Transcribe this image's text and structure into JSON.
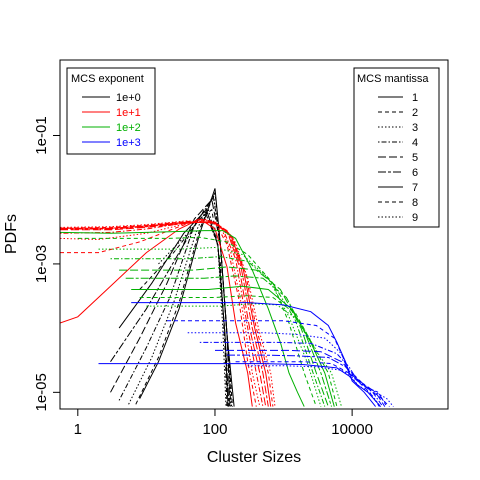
{
  "chart_data": {
    "type": "line",
    "xlabel": "Cluster Sizes",
    "ylabel": "PDFs",
    "x_scale": "log",
    "y_scale": "log",
    "xlim": [
      0.55,
      250000
    ],
    "ylim": [
      5.5e-06,
      1.5
    ],
    "grid": false,
    "x_ticks": [
      {
        "value": 1,
        "label": "1"
      },
      {
        "value": 100,
        "label": "100"
      },
      {
        "value": 10000,
        "label": "10000"
      }
    ],
    "y_ticks": [
      {
        "value": 0.1,
        "label": "1e-01"
      },
      {
        "value": 0.001,
        "label": "1e-03"
      },
      {
        "value": 1e-05,
        "label": "1e-05"
      }
    ],
    "legend_exponent": {
      "title": "MCS exponent",
      "placement": "top-left",
      "items": [
        {
          "label": "1e+0",
          "color": "#000000"
        },
        {
          "label": "1e+1",
          "color": "#ff0000"
        },
        {
          "label": "1e+2",
          "color": "#00b000"
        },
        {
          "label": "1e+3",
          "color": "#0000ff"
        }
      ]
    },
    "legend_mantissa": {
      "title": "MCS mantissa",
      "placement": "top-right",
      "items": [
        {
          "label": "1",
          "dash": "none"
        },
        {
          "label": "2",
          "dash": "4,3"
        },
        {
          "label": "3",
          "dash": "1.5,2"
        },
        {
          "label": "4",
          "dash": "1.5,2,5,2"
        },
        {
          "label": "5",
          "dash": "8,3"
        },
        {
          "label": "6",
          "dash": "8,2,3,2"
        },
        {
          "label": "7",
          "dash": "none"
        },
        {
          "label": "8",
          "dash": "4,3"
        },
        {
          "label": "9",
          "dash": "1.5,2"
        }
      ]
    },
    "series": [
      {
        "exponent": "1e+0",
        "mantissa": "1",
        "x": [
          8,
          15,
          30,
          60,
          100,
          120,
          150,
          190
        ],
        "y": [
          8e-06,
          3e-05,
          0.0002,
          0.003,
          0.015,
          0.002,
          8e-05,
          6e-06
        ]
      },
      {
        "exponent": "1e+0",
        "mantissa": "2",
        "x": [
          7,
          15,
          30,
          60,
          100,
          120,
          150,
          180
        ],
        "y": [
          6.5e-06,
          3.5e-05,
          0.00025,
          0.0035,
          0.013,
          0.002,
          8e-05,
          6e-06
        ]
      },
      {
        "exponent": "1e+0",
        "mantissa": "3",
        "x": [
          5.5,
          12,
          25,
          55,
          95,
          120,
          150,
          175
        ],
        "y": [
          6.5e-06,
          3.5e-05,
          0.00025,
          0.0035,
          0.012,
          0.002,
          8e-05,
          6e-06
        ]
      },
      {
        "exponent": "1e+0",
        "mantissa": "4",
        "x": [
          4,
          10,
          22,
          50,
          95,
          120,
          150,
          170
        ],
        "y": [
          7.5e-06,
          5e-05,
          0.0003,
          0.004,
          0.011,
          0.002,
          8e-05,
          6e-06
        ]
      },
      {
        "exponent": "1e+0",
        "mantissa": "5",
        "x": [
          3,
          8,
          20,
          50,
          90,
          120,
          150,
          165
        ],
        "y": [
          1e-05,
          7e-05,
          0.0005,
          0.005,
          0.01,
          0.002,
          8e-05,
          6e-06
        ]
      },
      {
        "exponent": "1e+0",
        "mantissa": "6",
        "x": [
          3,
          10,
          30,
          70,
          110,
          140,
          160
        ],
        "y": [
          3e-05,
          0.0002,
          0.0015,
          0.007,
          0.002,
          8e-05,
          6e-06
        ]
      },
      {
        "exponent": "1e+0",
        "mantissa": "7",
        "x": [
          4,
          12,
          35,
          75,
          110,
          140,
          155
        ],
        "y": [
          0.0001,
          0.0005,
          0.003,
          0.007,
          0.002,
          8e-05,
          6e-06
        ]
      },
      {
        "exponent": "1e+0",
        "mantissa": "8",
        "x": [
          8,
          25,
          60,
          90,
          120,
          140,
          150
        ],
        "y": [
          0.0004,
          0.0015,
          0.005,
          0.007,
          0.001,
          5e-05,
          6e-06
        ]
      },
      {
        "exponent": "1e+0",
        "mantissa": "9",
        "x": [
          15,
          40,
          80,
          110,
          130,
          145
        ],
        "y": [
          0.001,
          0.003,
          0.007,
          0.002,
          0.0001,
          6e-06
        ]
      },
      {
        "exponent": "1e+1",
        "mantissa": "1",
        "x": [
          0.55,
          1,
          3,
          10,
          30,
          60,
          100,
          150,
          200,
          300,
          350
        ],
        "y": [
          0.00012,
          0.00015,
          0.00045,
          0.0015,
          0.0035,
          0.005,
          0.0035,
          0.0009,
          0.00012,
          2e-05,
          6e-06
        ]
      },
      {
        "exponent": "1e+1",
        "mantissa": "2",
        "x": [
          0.55,
          2,
          8,
          30,
          60,
          100,
          150,
          220,
          300,
          400
        ],
        "y": [
          0.0015,
          0.0015,
          0.0022,
          0.0038,
          0.005,
          0.0045,
          0.002,
          0.0003,
          3e-05,
          6e-06
        ]
      },
      {
        "exponent": "1e+1",
        "mantissa": "3",
        "x": [
          0.55,
          2,
          10,
          30,
          70,
          120,
          170,
          250,
          350,
          450
        ],
        "y": [
          0.0025,
          0.0024,
          0.003,
          0.004,
          0.005,
          0.004,
          0.0015,
          0.0002,
          2e-05,
          6e-06
        ]
      },
      {
        "exponent": "1e+1",
        "mantissa": "4",
        "x": [
          0.55,
          3,
          10,
          30,
          80,
          130,
          200,
          300,
          400,
          500
        ],
        "y": [
          0.003,
          0.0031,
          0.0035,
          0.0042,
          0.0048,
          0.0035,
          0.0012,
          0.0001,
          2e-05,
          6e-06
        ]
      },
      {
        "exponent": "1e+1",
        "mantissa": "5",
        "x": [
          0.55,
          3,
          10,
          40,
          90,
          150,
          220,
          320,
          450,
          550
        ],
        "y": [
          0.0034,
          0.0034,
          0.0037,
          0.0043,
          0.0046,
          0.0033,
          0.001,
          0.0001,
          2e-05,
          6e-06
        ]
      },
      {
        "exponent": "1e+1",
        "mantissa": "6",
        "x": [
          0.55,
          3,
          10,
          40,
          100,
          160,
          240,
          350,
          500,
          600
        ],
        "y": [
          0.0035,
          0.0035,
          0.0038,
          0.0044,
          0.0045,
          0.003,
          0.0009,
          0.0001,
          2e-05,
          6e-06
        ]
      },
      {
        "exponent": "1e+1",
        "mantissa": "7",
        "x": [
          0.55,
          3,
          10,
          40,
          100,
          170,
          260,
          380,
          550,
          650
        ],
        "y": [
          0.0036,
          0.0036,
          0.0039,
          0.0045,
          0.0044,
          0.0028,
          0.0008,
          0.0001,
          2e-05,
          6e-06
        ]
      },
      {
        "exponent": "1e+1",
        "mantissa": "8",
        "x": [
          0.55,
          3,
          10,
          40,
          100,
          180,
          280,
          400,
          600,
          700
        ],
        "y": [
          0.0036,
          0.0037,
          0.004,
          0.0046,
          0.0043,
          0.0026,
          0.0007,
          0.0001,
          2e-05,
          6e-06
        ]
      },
      {
        "exponent": "1e+1",
        "mantissa": "9",
        "x": [
          0.55,
          3,
          10,
          40,
          100,
          190,
          300,
          430,
          650,
          750
        ],
        "y": [
          0.0037,
          0.0038,
          0.0041,
          0.0047,
          0.0042,
          0.0024,
          0.0006,
          0.0001,
          2e-05,
          6e-06
        ]
      },
      {
        "exponent": "1e+2",
        "mantissa": "1",
        "x": [
          0.55,
          3,
          10,
          30,
          70,
          130,
          200,
          350,
          600,
          900,
          1200,
          1600,
          2000
        ],
        "y": [
          0.0031,
          0.003,
          0.0031,
          0.0032,
          0.0033,
          0.0033,
          0.0025,
          0.0008,
          0.0002,
          6e-05,
          2e-05,
          1e-05,
          6e-06
        ]
      },
      {
        "exponent": "1e+2",
        "mantissa": "2",
        "x": [
          1,
          5,
          20,
          60,
          150,
          300,
          700,
          1200,
          2000,
          3000
        ],
        "y": [
          0.0025,
          0.0025,
          0.0025,
          0.0026,
          0.0022,
          0.0014,
          0.0005,
          0.00012,
          2e-05,
          6e-06
        ]
      },
      {
        "exponent": "1e+2",
        "mantissa": "3",
        "x": [
          2,
          8,
          30,
          100,
          250,
          600,
          1200,
          2200,
          3500
        ],
        "y": [
          0.0017,
          0.0017,
          0.0017,
          0.0018,
          0.0014,
          0.0006,
          0.00015,
          3e-05,
          6e-06
        ]
      },
      {
        "exponent": "1e+2",
        "mantissa": "4",
        "x": [
          3,
          10,
          40,
          120,
          300,
          700,
          1500,
          2700,
          4000
        ],
        "y": [
          0.0012,
          0.0012,
          0.0012,
          0.0013,
          0.0011,
          0.0005,
          0.00013,
          2e-05,
          6e-06
        ]
      },
      {
        "exponent": "1e+2",
        "mantissa": "5",
        "x": [
          4,
          15,
          50,
          150,
          400,
          900,
          1800,
          3000,
          4500
        ],
        "y": [
          0.0008,
          0.0008,
          0.0008,
          0.0009,
          0.0008,
          0.0004,
          0.0001,
          2e-05,
          6e-06
        ]
      },
      {
        "exponent": "1e+2",
        "mantissa": "6",
        "x": [
          5,
          20,
          70,
          200,
          500,
          1100,
          2100,
          3500,
          5000
        ],
        "y": [
          0.0006,
          0.0006,
          0.0006,
          0.00065,
          0.0006,
          0.0003,
          8e-05,
          2e-05,
          6e-06
        ]
      },
      {
        "exponent": "1e+2",
        "mantissa": "7",
        "x": [
          6,
          25,
          80,
          250,
          600,
          1300,
          2500,
          4000,
          5500
        ],
        "y": [
          0.0004,
          0.0004,
          0.0004,
          0.00045,
          0.0004,
          0.0002,
          6e-05,
          2e-05,
          6e-06
        ]
      },
      {
        "exponent": "1e+2",
        "mantissa": "8",
        "x": [
          8,
          30,
          100,
          300,
          700,
          1500,
          2800,
          4500,
          6000
        ],
        "y": [
          0.0003,
          0.0003,
          0.0003,
          0.00032,
          0.0003,
          0.00017,
          5e-05,
          2e-05,
          6e-06
        ]
      },
      {
        "exponent": "1e+2",
        "mantissa": "9",
        "x": [
          10,
          40,
          120,
          350,
          800,
          1700,
          3200,
          5000,
          7000
        ],
        "y": [
          0.00022,
          0.00022,
          0.00022,
          0.00024,
          0.00023,
          0.00013,
          4e-05,
          2e-05,
          6e-06
        ]
      },
      {
        "exponent": "1e+3",
        "mantissa": "1",
        "x": [
          6,
          30,
          100,
          300,
          1000,
          2500,
          4500,
          6000,
          8000,
          10000,
          15000,
          22000
        ],
        "y": [
          0.00025,
          0.00025,
          0.00025,
          0.00025,
          0.00023,
          0.00018,
          0.00011,
          6e-05,
          3e-05,
          1.5e-05,
          1e-05,
          6e-06
        ]
      },
      {
        "exponent": "1e+3",
        "mantissa": "2",
        "x": [
          20,
          80,
          300,
          1000,
          3000,
          5500,
          7000,
          9000,
          12000,
          18000,
          25000
        ],
        "y": [
          0.00013,
          0.00013,
          0.00013,
          0.00013,
          0.00011,
          7e-05,
          4e-05,
          2e-05,
          1.5e-05,
          1e-05,
          6e-06
        ]
      },
      {
        "exponent": "1e+3",
        "mantissa": "3",
        "x": [
          40,
          150,
          500,
          1500,
          4000,
          7000,
          9000,
          12000,
          18000,
          26000
        ],
        "y": [
          8.5e-05,
          8.5e-05,
          8.5e-05,
          8e-05,
          7e-05,
          4e-05,
          2e-05,
          1.3e-05,
          1e-05,
          6e-06
        ]
      },
      {
        "exponent": "1e+3",
        "mantissa": "4",
        "x": [
          60,
          250,
          800,
          2500,
          6000,
          9000,
          12000,
          20000,
          28000
        ],
        "y": [
          6e-05,
          6e-05,
          6e-05,
          5.8e-05,
          4e-05,
          2.5e-05,
          1.5e-05,
          1e-05,
          6e-06
        ]
      },
      {
        "exponent": "1e+3",
        "mantissa": "5",
        "x": [
          100,
          400,
          1200,
          3500,
          7000,
          10000,
          14000,
          22000,
          30000
        ],
        "y": [
          4.5e-05,
          4.5e-05,
          4.5e-05,
          4.3e-05,
          3e-05,
          2e-05,
          1.4e-05,
          1e-05,
          6e-06
        ]
      },
      {
        "exponent": "1e+3",
        "mantissa": "6",
        "x": [
          150,
          500,
          1500,
          4500,
          8000,
          11000,
          16000,
          24000,
          32000
        ],
        "y": [
          3.8e-05,
          3.8e-05,
          3.7e-05,
          3.5e-05,
          2.5e-05,
          1.7e-05,
          1.2e-05,
          1e-05,
          6e-06
        ]
      },
      {
        "exponent": "1e+3",
        "mantissa": "7",
        "x": [
          2,
          20,
          100,
          500,
          2000,
          6000,
          9000,
          12000,
          17000,
          26000
        ],
        "y": [
          2.8e-05,
          2.8e-05,
          2.8e-05,
          2.8e-05,
          2.7e-05,
          2.4e-05,
          1.8e-05,
          1.3e-05,
          1e-05,
          6e-06
        ]
      },
      {
        "exponent": "1e+3",
        "mantissa": "8",
        "x": [
          200,
          700,
          2000,
          5000,
          9000,
          13000,
          18000,
          27000,
          35000
        ],
        "y": [
          3e-05,
          3e-05,
          3e-05,
          2.8e-05,
          2e-05,
          1.5e-05,
          1.1e-05,
          8e-06,
          6e-06
        ]
      },
      {
        "exponent": "1e+3",
        "mantissa": "9",
        "x": [
          300,
          1000,
          3000,
          7000,
          11000,
          15000,
          22000,
          32000,
          40000
        ],
        "y": [
          2.6e-05,
          2.6e-05,
          2.5e-05,
          2.2e-05,
          1.7e-05,
          1.3e-05,
          1e-05,
          8e-06,
          6e-06
        ]
      }
    ]
  }
}
